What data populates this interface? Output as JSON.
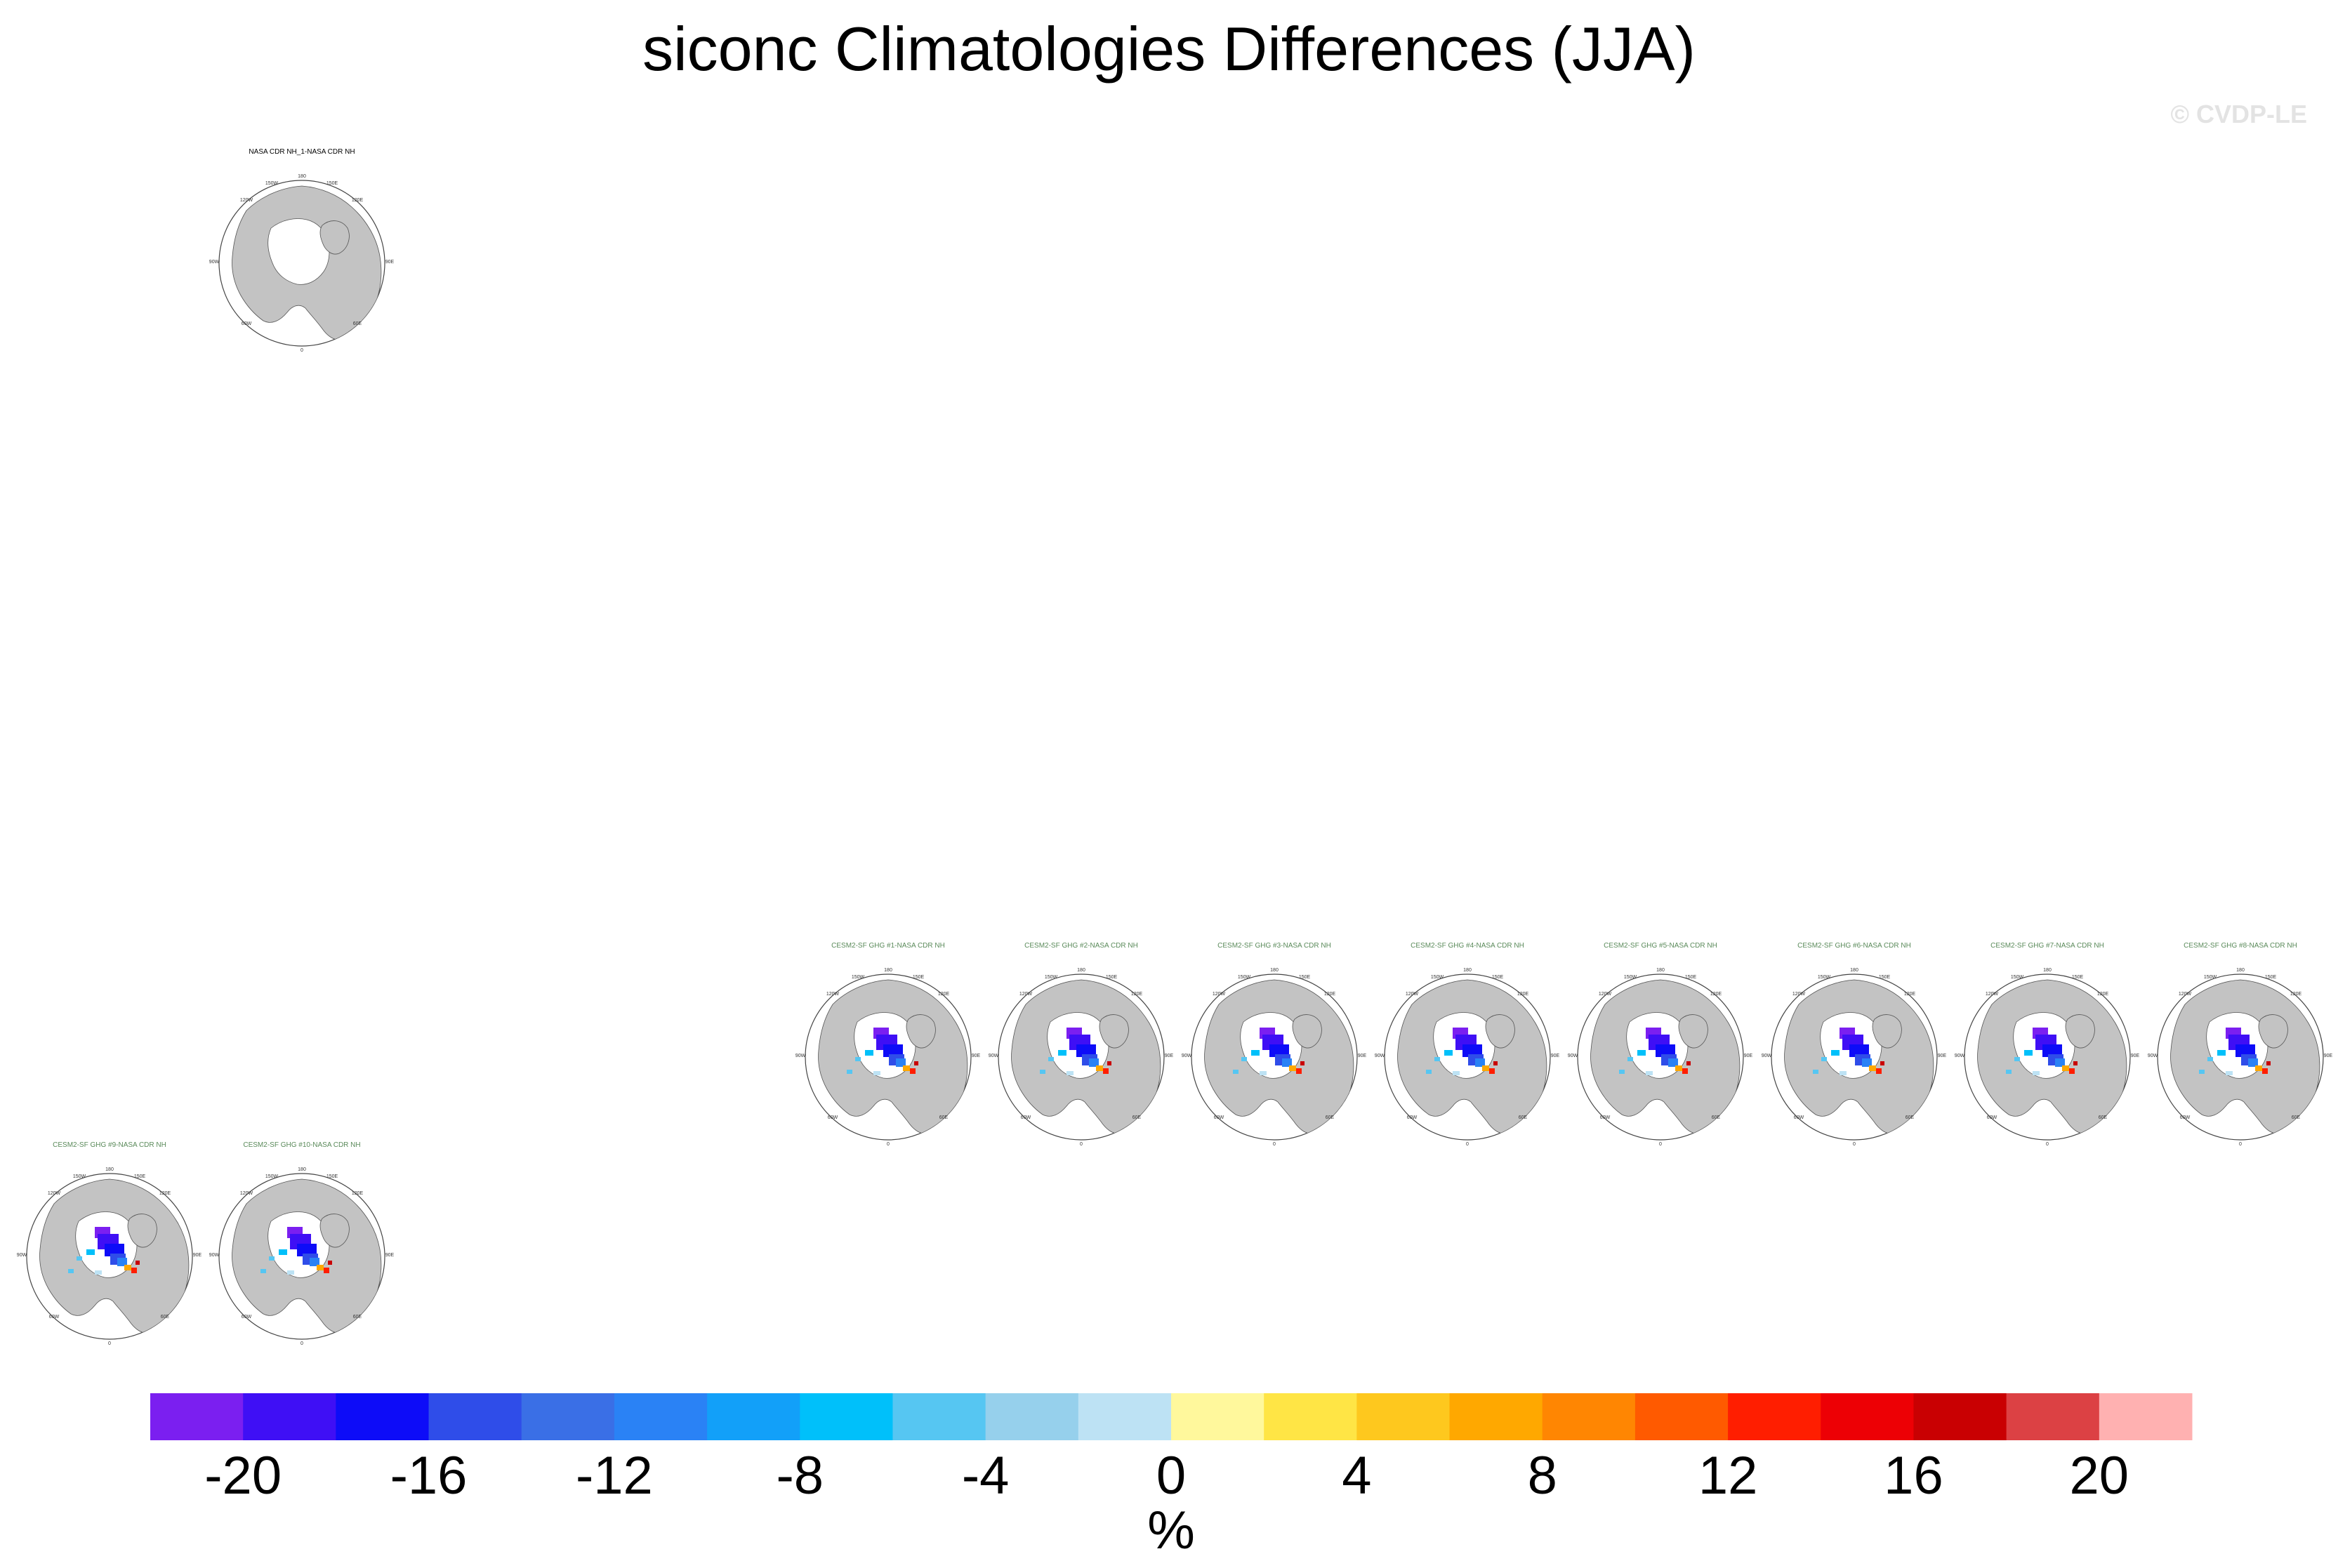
{
  "page": {
    "title": "siconc Climatologies Differences (JJA)",
    "watermark": "© CVDP-LE"
  },
  "colors": {
    "land": "#c3c3c3",
    "ocean": "#ffffff",
    "obs_title": "#000000",
    "model_title": "#5a8a5a"
  },
  "chart_data": {
    "type": "heatmap",
    "projection": "north polar stereographic",
    "season": "JJA",
    "variable": "siconc",
    "panel_lon_labels": [
      "180",
      "150W",
      "150E",
      "120W",
      "120E",
      "90W",
      "90E",
      "60W",
      "60E",
      "0"
    ],
    "panels": [
      {
        "title": "NASA CDR NH_1-NASA CDR NH",
        "kind": "observation",
        "row": "top-left"
      },
      {
        "title": "CESM2-SF GHG #1-NASA CDR NH",
        "kind": "model",
        "row": "middle"
      },
      {
        "title": "CESM2-SF GHG #2-NASA CDR NH",
        "kind": "model",
        "row": "middle"
      },
      {
        "title": "CESM2-SF GHG #3-NASA CDR NH",
        "kind": "model",
        "row": "middle"
      },
      {
        "title": "CESM2-SF GHG #4-NASA CDR NH",
        "kind": "model",
        "row": "middle"
      },
      {
        "title": "CESM2-SF GHG #5-NASA CDR NH",
        "kind": "model",
        "row": "middle"
      },
      {
        "title": "CESM2-SF GHG #6-NASA CDR NH",
        "kind": "model",
        "row": "middle"
      },
      {
        "title": "CESM2-SF GHG #7-NASA CDR NH",
        "kind": "model",
        "row": "middle"
      },
      {
        "title": "CESM2-SF GHG #8-NASA CDR NH",
        "kind": "model",
        "row": "middle"
      },
      {
        "title": "CESM2-SF GHG #9-NASA CDR NH",
        "kind": "model",
        "row": "bottom"
      },
      {
        "title": "CESM2-SF GHG #10-NASA CDR NH",
        "kind": "model",
        "row": "bottom"
      }
    ],
    "colorbar": {
      "label": "%",
      "levels": [
        -22,
        -20,
        -18,
        -16,
        -14,
        -12,
        -10,
        -8,
        -6,
        -4,
        -2,
        0,
        2,
        4,
        6,
        8,
        10,
        12,
        14,
        16,
        18,
        20,
        22
      ],
      "tick_labels": [
        "-20",
        "-16",
        "-12",
        "-8",
        "-4",
        "0",
        "4",
        "8",
        "12",
        "16",
        "20"
      ],
      "tick_values": [
        -20,
        -16,
        -12,
        -8,
        -4,
        0,
        4,
        8,
        12,
        16,
        20
      ],
      "colors": [
        "#7b1ff0",
        "#3f0ff5",
        "#0d0cf8",
        "#2f4de9",
        "#3a6fe6",
        "#2a82f5",
        "#12a0f9",
        "#00c0fa",
        "#56c6f2",
        "#96d0ec",
        "#bde2f4",
        "#fff89c",
        "#ffe545",
        "#fec81e",
        "#ffa800",
        "#ff8602",
        "#ff5a00",
        "#ff1e00",
        "#ed0005",
        "#c90002",
        "#dc4144",
        "#ffb1b1"
      ]
    }
  }
}
